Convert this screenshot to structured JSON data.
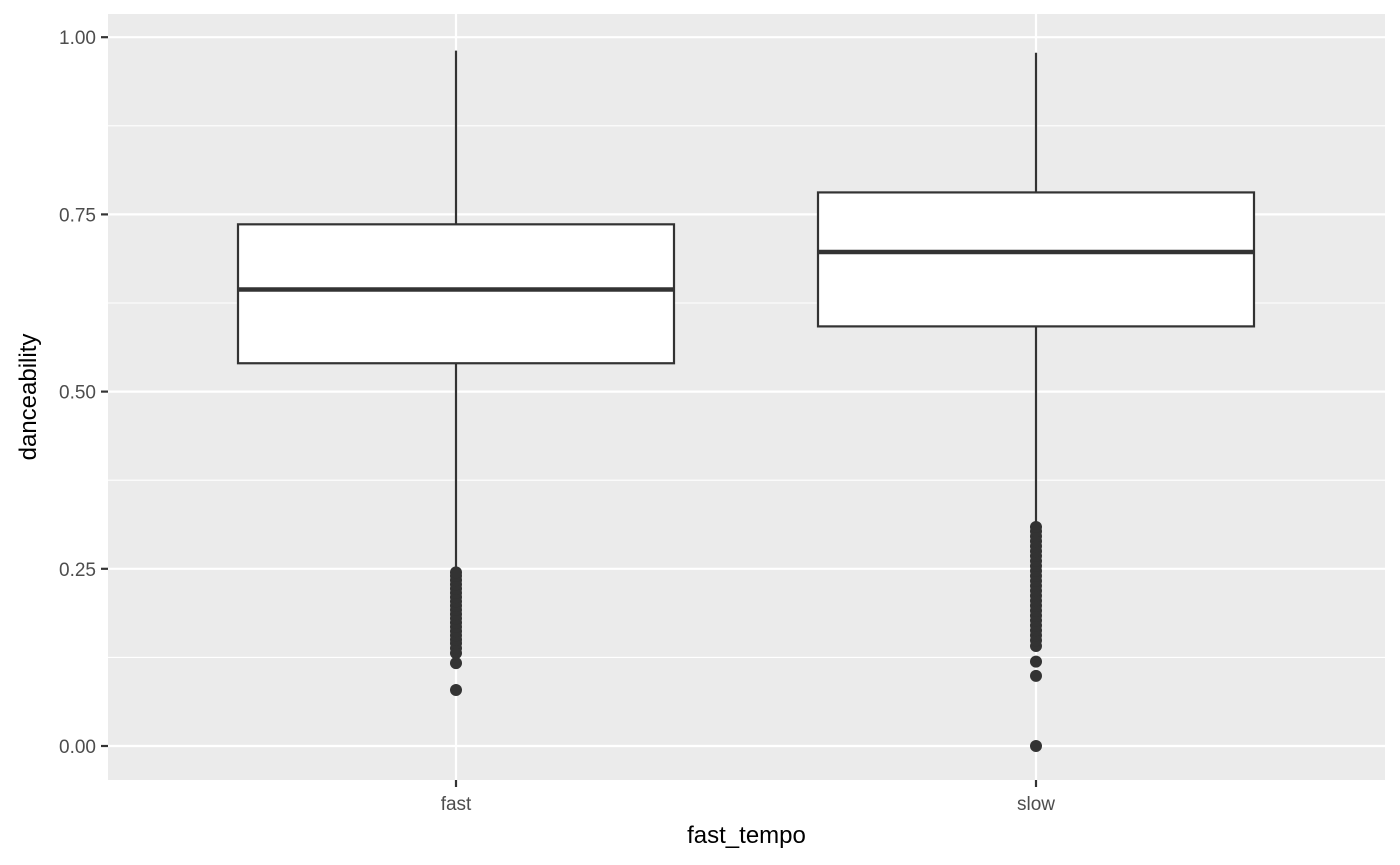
{
  "chart_data": {
    "type": "boxplot",
    "xlabel": "fast_tempo",
    "ylabel": "danceability",
    "categories": [
      "fast",
      "slow"
    ],
    "ylim": [
      -0.05,
      1.03
    ],
    "y_ticks": [
      0.0,
      0.25,
      0.5,
      0.75,
      1.0
    ],
    "y_tick_labels": [
      "0.00",
      "0.25",
      "0.50",
      "0.75",
      "1.00"
    ],
    "grid": true,
    "boxes": [
      {
        "category": "fast",
        "whisker_low": 0.246,
        "q1": 0.54,
        "median": 0.644,
        "q3": 0.736,
        "whisker_high": 0.981,
        "outliers": [
          0.079,
          0.117,
          0.131,
          0.138,
          0.145,
          0.15,
          0.156,
          0.162,
          0.168,
          0.174,
          0.18,
          0.186,
          0.192,
          0.198,
          0.204,
          0.21,
          0.216,
          0.222,
          0.228,
          0.234,
          0.24,
          0.245
        ]
      },
      {
        "category": "slow",
        "whisker_low": 0.31,
        "q1": 0.592,
        "median": 0.697,
        "q3": 0.781,
        "whisker_high": 0.978,
        "outliers": [
          0.0,
          0.099,
          0.119,
          0.141,
          0.149,
          0.156,
          0.163,
          0.17,
          0.177,
          0.184,
          0.191,
          0.198,
          0.205,
          0.212,
          0.219,
          0.226,
          0.233,
          0.24,
          0.247,
          0.254,
          0.261,
          0.268,
          0.275,
          0.282,
          0.289,
          0.296,
          0.303,
          0.309
        ]
      }
    ],
    "colors": {
      "panel_background": "#ebebeb",
      "grid": "#ffffff",
      "box_fill": "#ffffff",
      "box_line": "#333333",
      "tick": "#333333",
      "tick_label": "#4d4d4d",
      "axis_title": "#000000"
    }
  }
}
